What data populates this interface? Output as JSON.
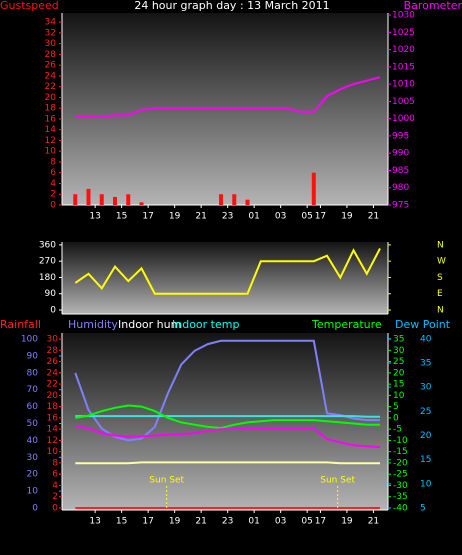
{
  "chart_data": [
    {
      "type": "line",
      "title": "24 hour graph day : 13 March 2011",
      "x": [
        1,
        2,
        3,
        4,
        5,
        6,
        7,
        8,
        9,
        10,
        11,
        12,
        13,
        14,
        15,
        16,
        17,
        18,
        19,
        20,
        21,
        22,
        23,
        24
      ],
      "xlim": [
        0,
        24.6
      ],
      "xticks": [
        {
          "value": 2.5,
          "label": "13"
        },
        {
          "value": 4.5,
          "label": "15"
        },
        {
          "value": 6.5,
          "label": "17"
        },
        {
          "value": 8.5,
          "label": "19"
        },
        {
          "value": 10.5,
          "label": "21"
        },
        {
          "value": 12.5,
          "label": "23"
        },
        {
          "value": 14.5,
          "label": "01"
        },
        {
          "value": 16.5,
          "label": "03"
        },
        {
          "value": 18.5,
          "label": "05"
        },
        {
          "value": 19.5,
          "label": "17"
        },
        {
          "value": 21.5,
          "label": "19"
        },
        {
          "value": 23.5,
          "label": "21"
        }
      ],
      "ylim": [
        0,
        35.7
      ],
      "yticks": [
        0,
        2,
        4,
        6,
        8,
        10,
        12,
        14,
        16,
        18,
        20,
        22,
        24,
        26,
        28,
        30,
        32,
        34
      ],
      "y2lim": [
        975,
        1030.6
      ],
      "y2ticks": [
        975,
        980,
        985,
        990,
        995,
        1000,
        1005,
        1010,
        1015,
        1020,
        1025,
        1030
      ],
      "axis_colors": {
        "y": "#ff2020",
        "y2": "#ff00ff"
      },
      "series": [
        {
          "name": "Gustspeed",
          "type": "bar",
          "color": "#ff1010",
          "axis": "y",
          "values": [
            2,
            3,
            2,
            1.5,
            2,
            0.5,
            0,
            0,
            0,
            0,
            0,
            2,
            2,
            1,
            0,
            0,
            0,
            0,
            6,
            0,
            0,
            0,
            0,
            0
          ]
        },
        {
          "name": "Barometer",
          "color": "#ff00ff",
          "axis": "y2",
          "values": [
            1000.5,
            1000.5,
            1000.5,
            1001,
            1001,
            1002.5,
            1003,
            1003,
            1003,
            1003,
            1003,
            1003,
            1003,
            1003,
            1003,
            1003,
            1003,
            1002,
            1002,
            1006.5,
            1008.5,
            1010,
            1011,
            1012
          ]
        }
      ]
    },
    {
      "type": "line",
      "x": [
        1,
        2,
        3,
        4,
        5,
        6,
        7,
        8,
        9,
        10,
        11,
        12,
        13,
        14,
        15,
        16,
        17,
        18,
        19,
        20,
        21,
        22,
        23,
        24
      ],
      "xlim": [
        0,
        24.6
      ],
      "ylim": [
        -22,
        376
      ],
      "yticks": [
        0,
        90,
        180,
        270,
        360
      ],
      "y2lim": [
        -22,
        376
      ],
      "y2ticks": [
        {
          "value": 360,
          "label": "N"
        },
        {
          "value": 270,
          "label": "W"
        },
        {
          "value": 180,
          "label": "S"
        },
        {
          "value": 90,
          "label": "E"
        },
        {
          "value": 0,
          "label": "N"
        }
      ],
      "axis_colors": {
        "y": "#ffffff",
        "y2": "#ffff00"
      },
      "series": [
        {
          "color": "#ffff00",
          "axis": "y",
          "values": [
            150,
            200,
            120,
            240,
            160,
            230,
            90,
            90,
            90,
            90,
            90,
            90,
            90,
            90,
            270,
            270,
            270,
            270,
            270,
            300,
            180,
            330,
            200,
            340
          ]
        }
      ]
    },
    {
      "type": "line",
      "x": [
        1,
        2,
        3,
        4,
        5,
        6,
        7,
        8,
        9,
        10,
        11,
        12,
        13,
        14,
        15,
        16,
        17,
        18,
        19,
        20,
        21,
        22,
        23,
        24
      ],
      "xlim": [
        0,
        24.6
      ],
      "xticks": [
        {
          "value": 2.5,
          "label": "13"
        },
        {
          "value": 4.5,
          "label": "15"
        },
        {
          "value": 6.5,
          "label": "17"
        },
        {
          "value": 8.5,
          "label": "19"
        },
        {
          "value": 10.5,
          "label": "21"
        },
        {
          "value": 12.5,
          "label": "23"
        },
        {
          "value": 14.5,
          "label": "01"
        },
        {
          "value": 16.5,
          "label": "03"
        },
        {
          "value": 18.5,
          "label": "05"
        },
        {
          "value": 19.5,
          "label": "17"
        },
        {
          "value": 21.5,
          "label": "19"
        },
        {
          "value": 23.5,
          "label": "21"
        }
      ],
      "ylim": [
        -1.2,
        103.6
      ],
      "yticks": [
        0,
        10,
        20,
        30,
        40,
        50,
        60,
        70,
        80,
        90,
        100
      ],
      "y3lim": [
        -0.36,
        31.07
      ],
      "y3ticks": [
        0,
        2,
        4,
        6,
        8,
        10,
        12,
        14,
        16,
        18,
        20,
        22,
        24,
        26,
        28,
        30
      ],
      "y2lim": [
        -40.9,
        37.7
      ],
      "y2ticks": [
        -40,
        -35,
        -30,
        -25,
        -20,
        -15,
        -10,
        -5,
        0,
        5,
        10,
        15,
        20,
        25,
        30,
        35
      ],
      "y4lim": [
        4.6,
        41.2
      ],
      "y4ticks": [
        5,
        10,
        15,
        20,
        25,
        30,
        35,
        40
      ],
      "axis_colors": {
        "y": "#8080ff",
        "y3": "#ff2020",
        "y2": "#00ff00",
        "y4": "#00c0ff"
      },
      "series": [
        {
          "name": "Rainfall",
          "color": "#ff2020",
          "axis": "y3",
          "values": [
            0,
            0,
            0,
            0,
            0,
            0,
            0,
            0,
            0,
            0,
            0,
            0,
            0,
            0,
            0,
            0,
            0,
            0,
            0,
            0,
            0,
            0,
            0,
            0
          ]
        },
        {
          "name": "Humidity",
          "color": "#8080ff",
          "axis": "y",
          "values": [
            80,
            58,
            47,
            42,
            40,
            41,
            48,
            68,
            85,
            93,
            97,
            99,
            99,
            99,
            99,
            99,
            99,
            99,
            99,
            56,
            55,
            53,
            52,
            52
          ]
        },
        {
          "name": "Indoor hum",
          "color": "#ffffa0",
          "legend_color": "#ffffff",
          "axis": "y",
          "values": [
            26.5,
            26.5,
            26.5,
            26.5,
            26.5,
            27,
            27,
            27,
            27,
            27,
            27,
            27,
            27,
            27,
            27,
            27,
            27,
            27,
            27,
            27,
            26.5,
            26.5,
            26.5,
            26.5
          ]
        },
        {
          "name": "Indoor temp",
          "color": "#40e0e0",
          "legend_color": "#00ffff",
          "axis": "y2",
          "values": [
            0.8,
            0.8,
            0.8,
            0.8,
            0.8,
            0.8,
            0.8,
            0.8,
            0.8,
            0.8,
            0.8,
            0.8,
            0.8,
            0.8,
            0.8,
            0.8,
            0.8,
            0.8,
            0.8,
            0.8,
            0.8,
            0.8,
            0.5,
            0.5
          ]
        },
        {
          "name": "Temperature",
          "color": "#00ff00",
          "axis": "y2",
          "values": [
            0,
            1,
            3,
            4.5,
            5.5,
            5,
            3,
            0,
            -2,
            -3,
            -4,
            -4.5,
            -3,
            -2,
            -1.5,
            -1,
            -1,
            -1,
            -1,
            -1.5,
            -2,
            -2.5,
            -3,
            -3
          ]
        },
        {
          "name": "Dew Point",
          "color": "#ff00ff",
          "legend_color": "#00c0ff",
          "axis": "y4",
          "values": [
            22,
            21.5,
            20.5,
            20,
            19.8,
            19.8,
            20,
            20.2,
            20.3,
            20.5,
            21,
            21.3,
            21.5,
            21.5,
            21.5,
            21.5,
            21.5,
            21.5,
            21.5,
            19.3,
            18.6,
            18,
            17.8,
            17.6
          ]
        }
      ],
      "annotations": [
        {
          "text": "Sun Set",
          "x": 7.9
        },
        {
          "text": "Sun Set",
          "x": 20.8
        }
      ]
    }
  ]
}
